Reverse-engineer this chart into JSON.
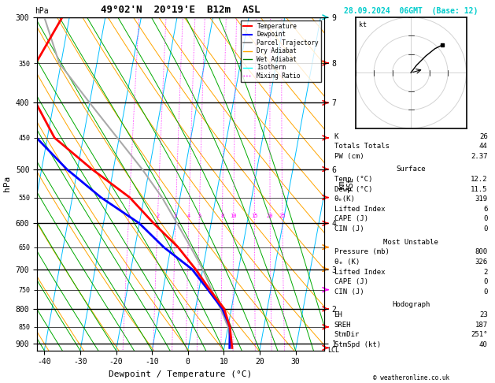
{
  "title_left": "49°02'N  20°19'E  B12m  ASL",
  "title_right": "28.09.2024  06GMT  (Base: 12)",
  "xlabel": "Dewpoint / Temperature (°C)",
  "ylabel_left": "hPa",
  "xlim": [
    -42,
    38
  ],
  "p_min": 300,
  "p_max": 920,
  "skew_factor": 17,
  "temp_profile": {
    "temps": [
      12.2,
      10.5,
      8.0,
      3.0,
      -2.0,
      -8.0,
      -16.0,
      -24.0,
      -36.0,
      -48.0,
      -55.0,
      -57.0,
      -52.0
    ],
    "pressures": [
      912,
      850,
      800,
      750,
      700,
      650,
      600,
      550,
      500,
      450,
      400,
      350,
      300
    ],
    "color": "#ff0000",
    "linewidth": 2.0
  },
  "dewpoint_profile": {
    "temps": [
      11.5,
      10.5,
      7.5,
      2.5,
      -3.0,
      -12.0,
      -20.0,
      -32.0,
      -43.0,
      -53.0,
      -61.0,
      -63.0,
      -62.0
    ],
    "pressures": [
      912,
      850,
      800,
      750,
      700,
      650,
      600,
      550,
      500,
      450,
      400,
      350,
      300
    ],
    "color": "#0000ff",
    "linewidth": 2.0
  },
  "parcel_profile": {
    "temps": [
      12.2,
      10.0,
      7.0,
      3.5,
      0.0,
      -4.5,
      -9.5,
      -15.0,
      -22.0,
      -30.5,
      -40.0,
      -50.5,
      -57.0
    ],
    "pressures": [
      912,
      850,
      800,
      750,
      700,
      650,
      600,
      550,
      500,
      450,
      400,
      350,
      300
    ],
    "color": "#aaaaaa",
    "linewidth": 1.5
  },
  "isotherm_color": "#00bfff",
  "isotherm_lw": 0.7,
  "dry_adiabat_color": "#ffa500",
  "dry_adiabat_lw": 0.7,
  "wet_adiabat_color": "#00aa00",
  "wet_adiabat_lw": 0.7,
  "mixing_ratio_color": "#ff00ff",
  "mixing_ratio_lw": 0.6,
  "mixing_ratios": [
    1,
    2,
    3,
    4,
    5,
    8,
    10,
    15,
    20,
    25
  ],
  "stats": {
    "K": 26,
    "Totals_Totals": 44,
    "PW_cm": 2.37,
    "Surface_Temp": 12.2,
    "Surface_Dewp": 11.5,
    "Surface_thetae": 319,
    "Surface_LI": 6,
    "Surface_CAPE": 0,
    "Surface_CIN": 0,
    "MU_Pressure": 800,
    "MU_thetae": 326,
    "MU_LI": 2,
    "MU_CAPE": 0,
    "MU_CIN": 0,
    "EH": 23,
    "SREH": 187,
    "StmDir": 251,
    "StmSpd": 40
  },
  "wind_barbs": [
    {
      "pressure": 912,
      "color": "#ff0000",
      "u": 8,
      "v": 4
    },
    {
      "pressure": 850,
      "color": "#ff0000",
      "u": 10,
      "v": 5
    },
    {
      "pressure": 800,
      "color": "#ff0000",
      "u": 12,
      "v": 6
    },
    {
      "pressure": 750,
      "color": "#ff0000",
      "u": 14,
      "v": 7
    },
    {
      "pressure": 700,
      "color": "#ff00ff",
      "u": 15,
      "v": 8
    },
    {
      "pressure": 650,
      "color": "#ff00ff",
      "u": 16,
      "v": 9
    },
    {
      "pressure": 600,
      "color": "#ff0000",
      "u": 18,
      "v": 10
    },
    {
      "pressure": 550,
      "color": "#ff0000",
      "u": 20,
      "v": 11
    },
    {
      "pressure": 500,
      "color": "#ff0000",
      "u": 22,
      "v": 12
    },
    {
      "pressure": 450,
      "color": "#ff0000",
      "u": 20,
      "v": 10
    },
    {
      "pressure": 400,
      "color": "#ff0000",
      "u": 18,
      "v": 8
    },
    {
      "pressure": 350,
      "color": "#ff0000",
      "u": 16,
      "v": 6
    },
    {
      "pressure": 300,
      "color": "#00ffff",
      "u": 14,
      "v": 5
    }
  ]
}
